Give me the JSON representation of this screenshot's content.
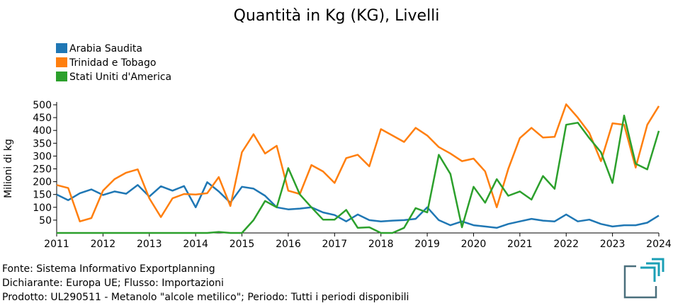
{
  "chart_data": {
    "type": "line",
    "title": "Quantità in Kg (KG), Livelli",
    "ylabel": "Milioni di kg",
    "xlabel": "",
    "xlim": [
      2011,
      2024
    ],
    "ylim": [
      0,
      500
    ],
    "yticks": [
      50,
      100,
      150,
      200,
      250,
      300,
      350,
      400,
      450,
      500
    ],
    "xticks": [
      2011,
      2012,
      2013,
      2014,
      2015,
      2016,
      2017,
      2018,
      2019,
      2020,
      2021,
      2022,
      2023,
      2024
    ],
    "grid": false,
    "legend_position": "top-left",
    "x": [
      2011.0,
      2011.25,
      2011.5,
      2011.75,
      2012.0,
      2012.25,
      2012.5,
      2012.75,
      2013.0,
      2013.25,
      2013.5,
      2013.75,
      2014.0,
      2014.25,
      2014.5,
      2014.75,
      2015.0,
      2015.25,
      2015.5,
      2015.75,
      2016.0,
      2016.25,
      2016.5,
      2016.75,
      2017.0,
      2017.25,
      2017.5,
      2017.75,
      2018.0,
      2018.25,
      2018.5,
      2018.75,
      2019.0,
      2019.25,
      2019.5,
      2019.75,
      2020.0,
      2020.25,
      2020.5,
      2020.75,
      2021.0,
      2021.25,
      2021.5,
      2021.75,
      2022.0,
      2022.25,
      2022.5,
      2022.75,
      2023.0,
      2023.25,
      2023.5,
      2023.75,
      2024.0
    ],
    "series": [
      {
        "name": "Arabia Saudita",
        "color": "#1f77b4",
        "values": [
          150,
          128,
          155,
          170,
          148,
          162,
          153,
          187,
          142,
          182,
          165,
          183,
          100,
          198,
          162,
          118,
          180,
          173,
          145,
          100,
          92,
          95,
          100,
          80,
          70,
          45,
          72,
          50,
          45,
          48,
          50,
          55,
          100,
          50,
          30,
          45,
          30,
          25,
          20,
          35,
          45,
          55,
          48,
          45,
          72,
          45,
          52,
          35,
          25,
          30,
          30,
          40,
          68
        ]
      },
      {
        "name": "Trinidad e Tobago",
        "color": "#ff7f0e",
        "values": [
          187,
          175,
          45,
          58,
          165,
          210,
          235,
          248,
          135,
          62,
          135,
          152,
          150,
          155,
          218,
          105,
          315,
          385,
          310,
          340,
          165,
          152,
          265,
          240,
          195,
          292,
          305,
          260,
          405,
          380,
          355,
          410,
          380,
          335,
          310,
          280,
          290,
          240,
          100,
          250,
          370,
          410,
          372,
          375,
          502,
          450,
          390,
          280,
          428,
          422,
          255,
          422,
          495
        ]
      },
      {
        "name": "Stati Uniti d'America",
        "color": "#2ca02c",
        "values": [
          0,
          0,
          0,
          0,
          0,
          0,
          0,
          0,
          0,
          0,
          0,
          0,
          0,
          0,
          4,
          0,
          0,
          50,
          125,
          100,
          253,
          150,
          100,
          52,
          52,
          90,
          20,
          22,
          0,
          0,
          20,
          97,
          80,
          305,
          230,
          22,
          180,
          118,
          210,
          145,
          162,
          130,
          222,
          172,
          422,
          430,
          370,
          315,
          195,
          458,
          270,
          248,
          398
        ]
      }
    ]
  },
  "footer": {
    "source": "Fonte: Sistema Informativo Exportplanning",
    "declarant": "Dichiarante: Europa UE; Flusso: Importazioni",
    "product": "Prodotto: UL290511 - Metanolo \"alcole metilico\"; Periodo: Tutti i periodi disponibili"
  },
  "logo": {
    "icon": "exportplanning-logo-icon",
    "colors": [
      "#4a6f7c",
      "#1a9fb5"
    ]
  }
}
